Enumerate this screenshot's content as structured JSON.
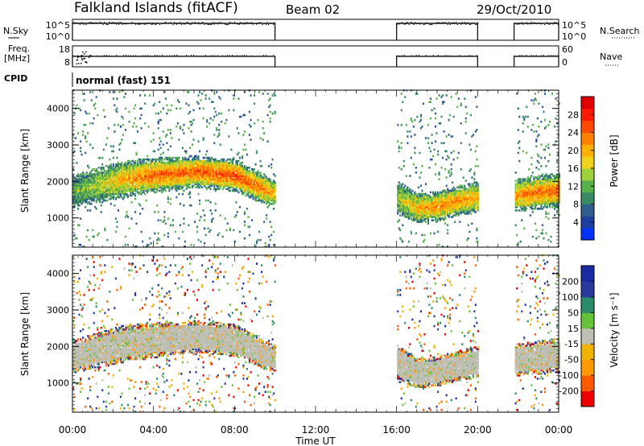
{
  "header": {
    "station": "Falkland Islands (fitACF)",
    "beam": "Beam 02",
    "date": "29/Oct/2010"
  },
  "left_labels": {
    "nsky": "N.Sky",
    "freq": "Freq.",
    "freq_unit": "[MHz]",
    "cpid": "CPID"
  },
  "right_labels": {
    "nsearch": "N.Search",
    "nave": "Nave"
  },
  "cpid_text": "normal (fast) 151",
  "time_axis": {
    "label": "Time UT",
    "ticks": [
      "00:00",
      "04:00",
      "08:00",
      "12:00",
      "16:00",
      "20:00",
      "00:00"
    ]
  },
  "range_axis": {
    "label": "Slant Range [km]",
    "ticks": [
      "1000",
      "2000",
      "3000",
      "4000"
    ]
  },
  "power_scale": {
    "label": "Power [dB]",
    "ticks": [
      "4",
      "8",
      "12",
      "16",
      "20",
      "24",
      "28"
    ],
    "colors": [
      "#0033ff",
      "#1d3f9e",
      "#2e5e8e",
      "#3a8a64",
      "#58b04a",
      "#9fcf3a",
      "#f0d21a",
      "#ffb000",
      "#ff8000",
      "#ff4a00",
      "#ff1a00",
      "#e00000"
    ]
  },
  "velocity_scale": {
    "label": "Velocity [m s⁻¹]",
    "ticks": [
      "200",
      "100",
      "50",
      "15",
      "-15",
      "-50",
      "-100",
      "-200"
    ],
    "colors": [
      "#ee0000",
      "#ff5a00",
      "#ff9a00",
      "#f0b400",
      "#bfbfb5",
      "#66c23a",
      "#2a8a6a",
      "#2a3a9a",
      "#1a2aa0"
    ]
  },
  "noise_panel": {
    "left_ticks": [
      "10^5",
      "10^0"
    ],
    "right_ticks": [
      "10^5",
      "10^0"
    ]
  },
  "freq_panel": {
    "left_ticks": [
      "18",
      "8"
    ],
    "right_ticks": [
      "60",
      "0"
    ]
  },
  "chart_data": [
    {
      "type": "heatmap",
      "name": "power",
      "title": "Power [dB]",
      "xlabel": "Time UT",
      "ylabel": "Slant Range [km]",
      "xlim": [
        0,
        24
      ],
      "ylim": [
        200,
        4500
      ],
      "data_intervals_hours": [
        [
          0,
          10
        ],
        [
          16,
          20
        ],
        [
          21.8,
          24
        ]
      ],
      "echo_band": [
        {
          "t": 0.0,
          "center_km": 1700,
          "width_km": 650,
          "power_db": 12
        },
        {
          "t": 1.0,
          "center_km": 1850,
          "width_km": 700,
          "power_db": 14
        },
        {
          "t": 2.5,
          "center_km": 2050,
          "width_km": 750,
          "power_db": 20
        },
        {
          "t": 4.0,
          "center_km": 2150,
          "width_km": 700,
          "power_db": 24
        },
        {
          "t": 6.0,
          "center_km": 2250,
          "width_km": 650,
          "power_db": 24
        },
        {
          "t": 8.0,
          "center_km": 2150,
          "width_km": 650,
          "power_db": 26
        },
        {
          "t": 9.5,
          "center_km": 1750,
          "width_km": 600,
          "power_db": 22
        },
        {
          "t": 10.0,
          "center_km": 1650,
          "width_km": 500,
          "power_db": 18
        },
        {
          "t": 16.0,
          "center_km": 1550,
          "width_km": 700,
          "power_db": 14
        },
        {
          "t": 17.0,
          "center_km": 1250,
          "width_km": 600,
          "power_db": 20
        },
        {
          "t": 18.0,
          "center_km": 1300,
          "width_km": 600,
          "power_db": 22
        },
        {
          "t": 19.0,
          "center_km": 1450,
          "width_km": 600,
          "power_db": 22
        },
        {
          "t": 20.0,
          "center_km": 1550,
          "width_km": 650,
          "power_db": 20
        },
        {
          "t": 21.8,
          "center_km": 1600,
          "width_km": 650,
          "power_db": 22
        },
        {
          "t": 24.0,
          "center_km": 1750,
          "width_km": 700,
          "power_db": 24
        }
      ]
    },
    {
      "type": "heatmap",
      "name": "velocity",
      "title": "Velocity [m s⁻¹]",
      "xlabel": "Time UT",
      "ylabel": "Slant Range [km]",
      "xlim": [
        0,
        24
      ],
      "ylim": [
        200,
        4500
      ],
      "data_intervals_hours": [
        [
          0,
          10
        ],
        [
          16,
          20
        ],
        [
          21.8,
          24
        ]
      ],
      "typical_velocity_range": [
        -15,
        15
      ]
    }
  ]
}
